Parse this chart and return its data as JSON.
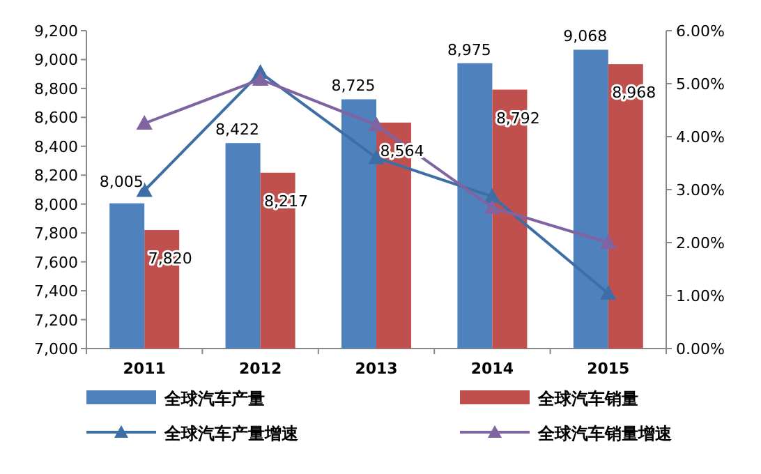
{
  "chart_data": {
    "type": "bar",
    "categories": [
      "2011",
      "2012",
      "2013",
      "2014",
      "2015"
    ],
    "series": [
      {
        "name": "全球汽车产量",
        "color": "#4f81bd",
        "values": [
          8005,
          8422,
          8725,
          8975,
          9068
        ],
        "value_labels": [
          "8,005",
          "8,422",
          "8,725",
          "8,975",
          "9,068"
        ]
      },
      {
        "name": "全球汽车销量",
        "color": "#c0504d",
        "values": [
          7820,
          8217,
          8564,
          8792,
          8968
        ],
        "value_labels": [
          "7,820",
          "8,217",
          "8,564",
          "8,792",
          "8,968"
        ]
      },
      {
        "name": "全球汽车产量增速",
        "type": "line",
        "axis": "y2",
        "color": "#3d6fa6",
        "marker": "triangle",
        "values": [
          2.98,
          5.21,
          3.6,
          2.87,
          1.04
        ]
      },
      {
        "name": "全球汽车销量增速",
        "type": "line",
        "axis": "y2",
        "color": "#8064a2",
        "marker": "triangle",
        "values": [
          4.25,
          5.08,
          4.22,
          2.66,
          2.0
        ]
      }
    ],
    "ylim": [
      7000,
      9200
    ],
    "yticks": [
      {
        "value": 7000,
        "label": "7,000"
      },
      {
        "value": 7200,
        "label": "7,200"
      },
      {
        "value": 7400,
        "label": "7,400"
      },
      {
        "value": 7600,
        "label": "7,600"
      },
      {
        "value": 7800,
        "label": "7,800"
      },
      {
        "value": 8000,
        "label": "8,000"
      },
      {
        "value": 8200,
        "label": "8,200"
      },
      {
        "value": 8400,
        "label": "8,400"
      },
      {
        "value": 8600,
        "label": "8,600"
      },
      {
        "value": 8800,
        "label": "8,800"
      },
      {
        "value": 9000,
        "label": "9,000"
      },
      {
        "value": 9200,
        "label": "9,200"
      }
    ],
    "y2lim": [
      0,
      6
    ],
    "y2ticks": [
      {
        "value": 0,
        "label": "0.00%"
      },
      {
        "value": 1,
        "label": "1.00%"
      },
      {
        "value": 2,
        "label": "2.00%"
      },
      {
        "value": 3,
        "label": "3.00%"
      },
      {
        "value": 4,
        "label": "4.00%"
      },
      {
        "value": 5,
        "label": "5.00%"
      },
      {
        "value": 6,
        "label": "6.00%"
      }
    ],
    "legend": "bottom"
  }
}
